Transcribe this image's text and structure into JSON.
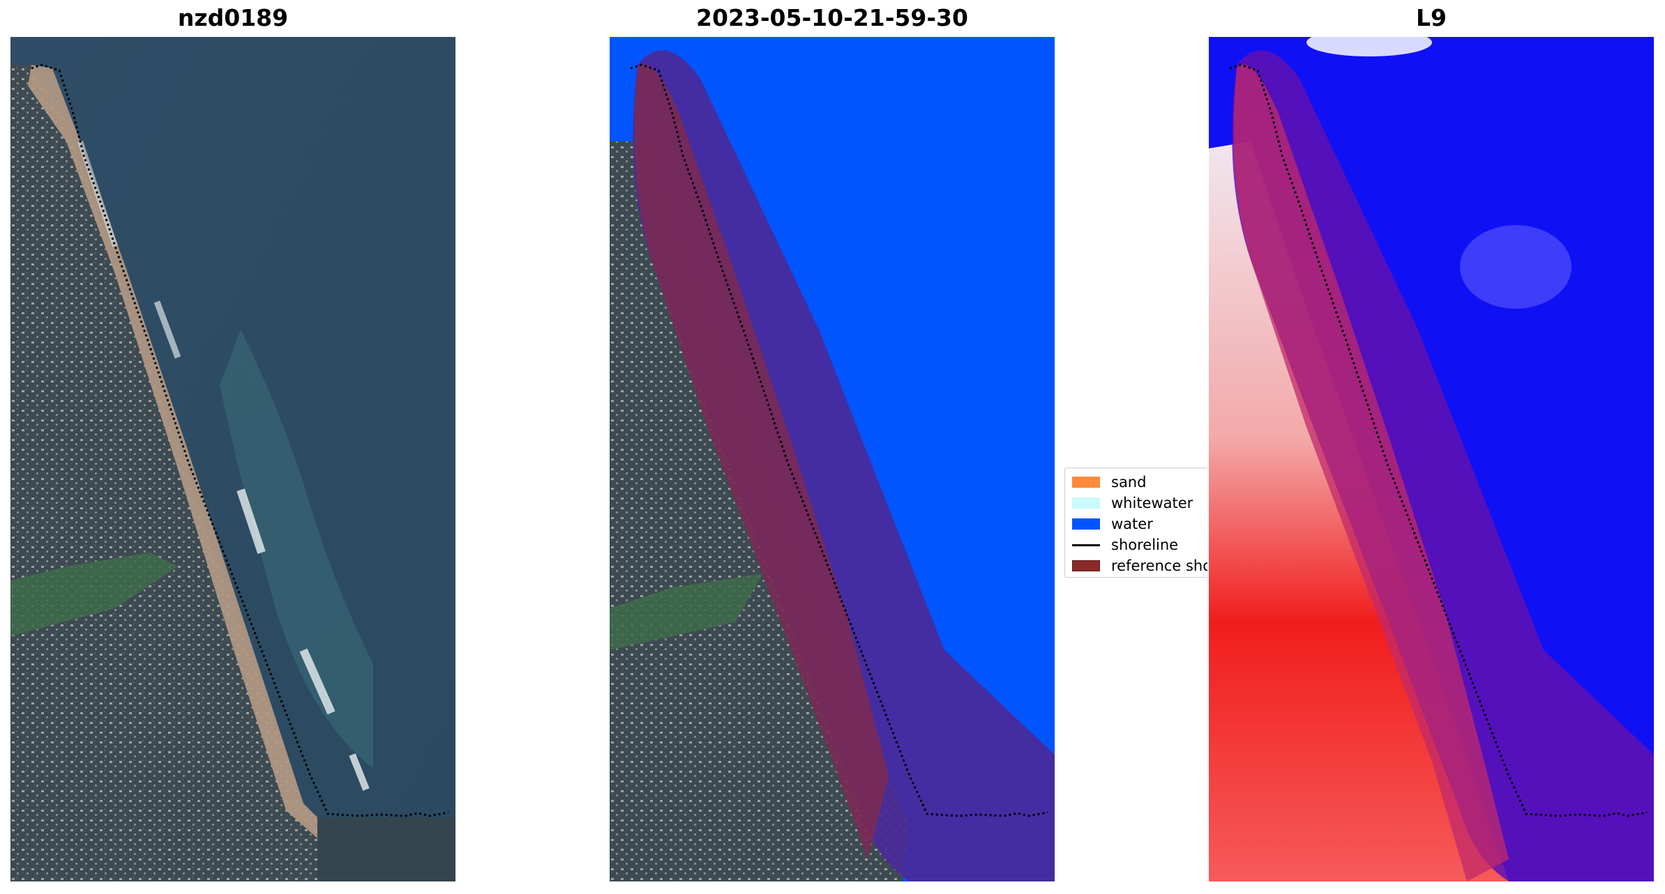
{
  "panels": [
    {
      "title": "nzd0189"
    },
    {
      "title": "2023-05-10-21-59-30"
    },
    {
      "title": "L9"
    }
  ],
  "legend": {
    "items": [
      {
        "label": "sand",
        "color": "#ff8a3a"
      },
      {
        "label": "whitewater",
        "color": "#c8fbfb"
      },
      {
        "label": "water",
        "color": "#0055ff"
      },
      {
        "label": "shoreline",
        "color": "#000000"
      },
      {
        "label": "reference shoreline buffer",
        "color": "#8b2a2a"
      }
    ]
  },
  "colors": {
    "water_class": "#0055ff",
    "buffer_overlay": "#5a2aa0",
    "index_land": "#ff1a1a",
    "index_water": "#1a1aff"
  }
}
